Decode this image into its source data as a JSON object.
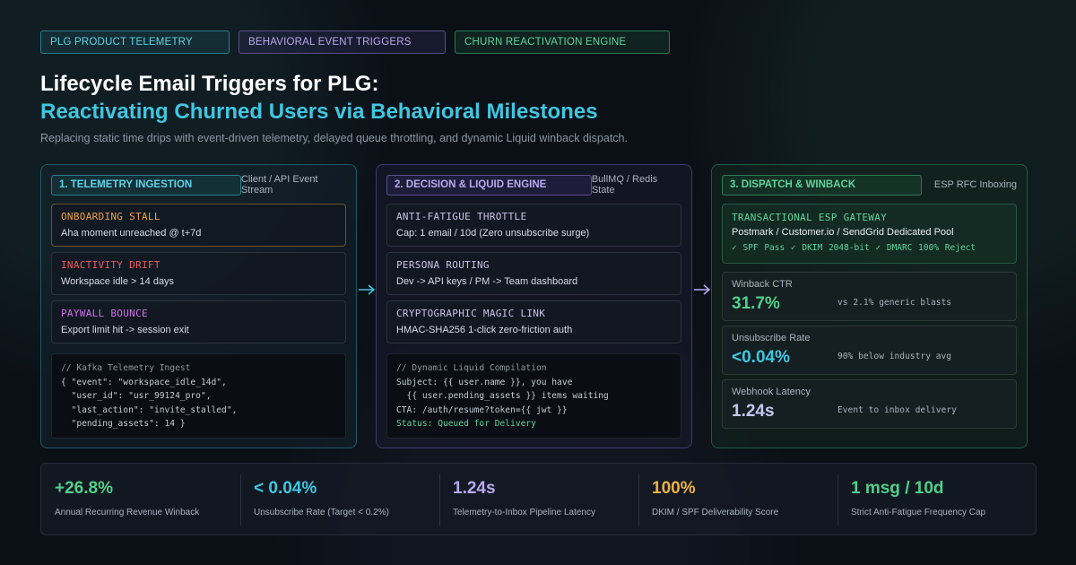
{
  "tags": [
    "PLG PRODUCT TELEMETRY",
    "BEHAVIORAL EVENT TRIGGERS",
    "CHURN REACTIVATION ENGINE"
  ],
  "title_line1": "Lifecycle Email Triggers for PLG:",
  "title_line2": "Reactivating Churned Users via Behavioral Milestones",
  "subtitle": "Replacing static time drips with event-driven telemetry, delayed queue throttling, and dynamic Liquid winback dispatch.",
  "panel1": {
    "tag": "1. TELEMETRY INGESTION",
    "note": "Client / API Event Stream",
    "cards": [
      {
        "title": "ONBOARDING STALL",
        "desc": "Aha moment unreached @ t+7d"
      },
      {
        "title": "INACTIVITY DRIFT",
        "desc": "Workspace idle > 14 days"
      },
      {
        "title": "PAYWALL BOUNCE",
        "desc": "Export limit hit -> session exit"
      }
    ],
    "code": [
      "// Kafka Telemetry Ingest",
      "{ \"event\": \"workspace_idle_14d\",",
      "  \"user_id\": \"usr_99124_pro\",",
      "  \"last_action\": \"invite_stalled\",",
      "  \"pending_assets\": 14 }"
    ]
  },
  "panel2": {
    "tag": "2. DECISION & LIQUID ENGINE",
    "note": "BullMQ / Redis State",
    "cards": [
      {
        "title": "ANTI-FATIGUE THROTTLE",
        "desc": "Cap: 1 email / 10d (Zero unsubscribe surge)"
      },
      {
        "title": "PERSONA ROUTING",
        "desc": "Dev -> API keys / PM -> Team dashboard"
      },
      {
        "title": "CRYPTOGRAPHIC MAGIC LINK",
        "desc": "HMAC-SHA256 1-click zero-friction auth"
      }
    ],
    "code": [
      "// Dynamic Liquid Compilation",
      "Subject: {{ user.name }}, you have",
      "  {{ user.pending_assets }} items waiting",
      "CTA: /auth/resume?token={{ jwt }}",
      "Status: Queued for Delivery"
    ]
  },
  "panel3": {
    "tag": "3. DISPATCH & WINBACK",
    "note": "ESP RFC Inboxing",
    "esp": {
      "title": "TRANSACTIONAL ESP GATEWAY",
      "desc": "Postmark / Customer.io / SendGrid Dedicated Pool",
      "checks": "✓ SPF Pass  ✓ DKIM 2048-bit  ✓ DMARC 100% Reject"
    },
    "metrics": [
      {
        "label": "Winback CTR",
        "value": "31.7%",
        "note": "vs 2.1% generic blasts"
      },
      {
        "label": "Unsubscribe Rate",
        "value": "<0.04%",
        "note": "90% below industry avg"
      },
      {
        "label": "Webhook Latency",
        "value": "1.24s",
        "note": "Event to inbox delivery"
      }
    ]
  },
  "stats": [
    {
      "value": "+26.8%",
      "label": "Annual Recurring Revenue Winback"
    },
    {
      "value": "< 0.04%",
      "label": "Unsubscribe Rate (Target < 0.2%)"
    },
    {
      "value": "1.24s",
      "label": "Telemetry-to-Inbox Pipeline Latency"
    },
    {
      "value": "100%",
      "label": "DKIM / SPF Deliverability Score"
    },
    {
      "value": "1 msg / 10d",
      "label": "Strict Anti-Fatigue Frequency Cap"
    }
  ],
  "colors": {
    "cyan": "#3fc6e0",
    "violet": "#b9a8f0",
    "green": "#4fd08a",
    "orange": "#f0a040",
    "red": "#f05a5a",
    "magenta": "#d070e8"
  }
}
